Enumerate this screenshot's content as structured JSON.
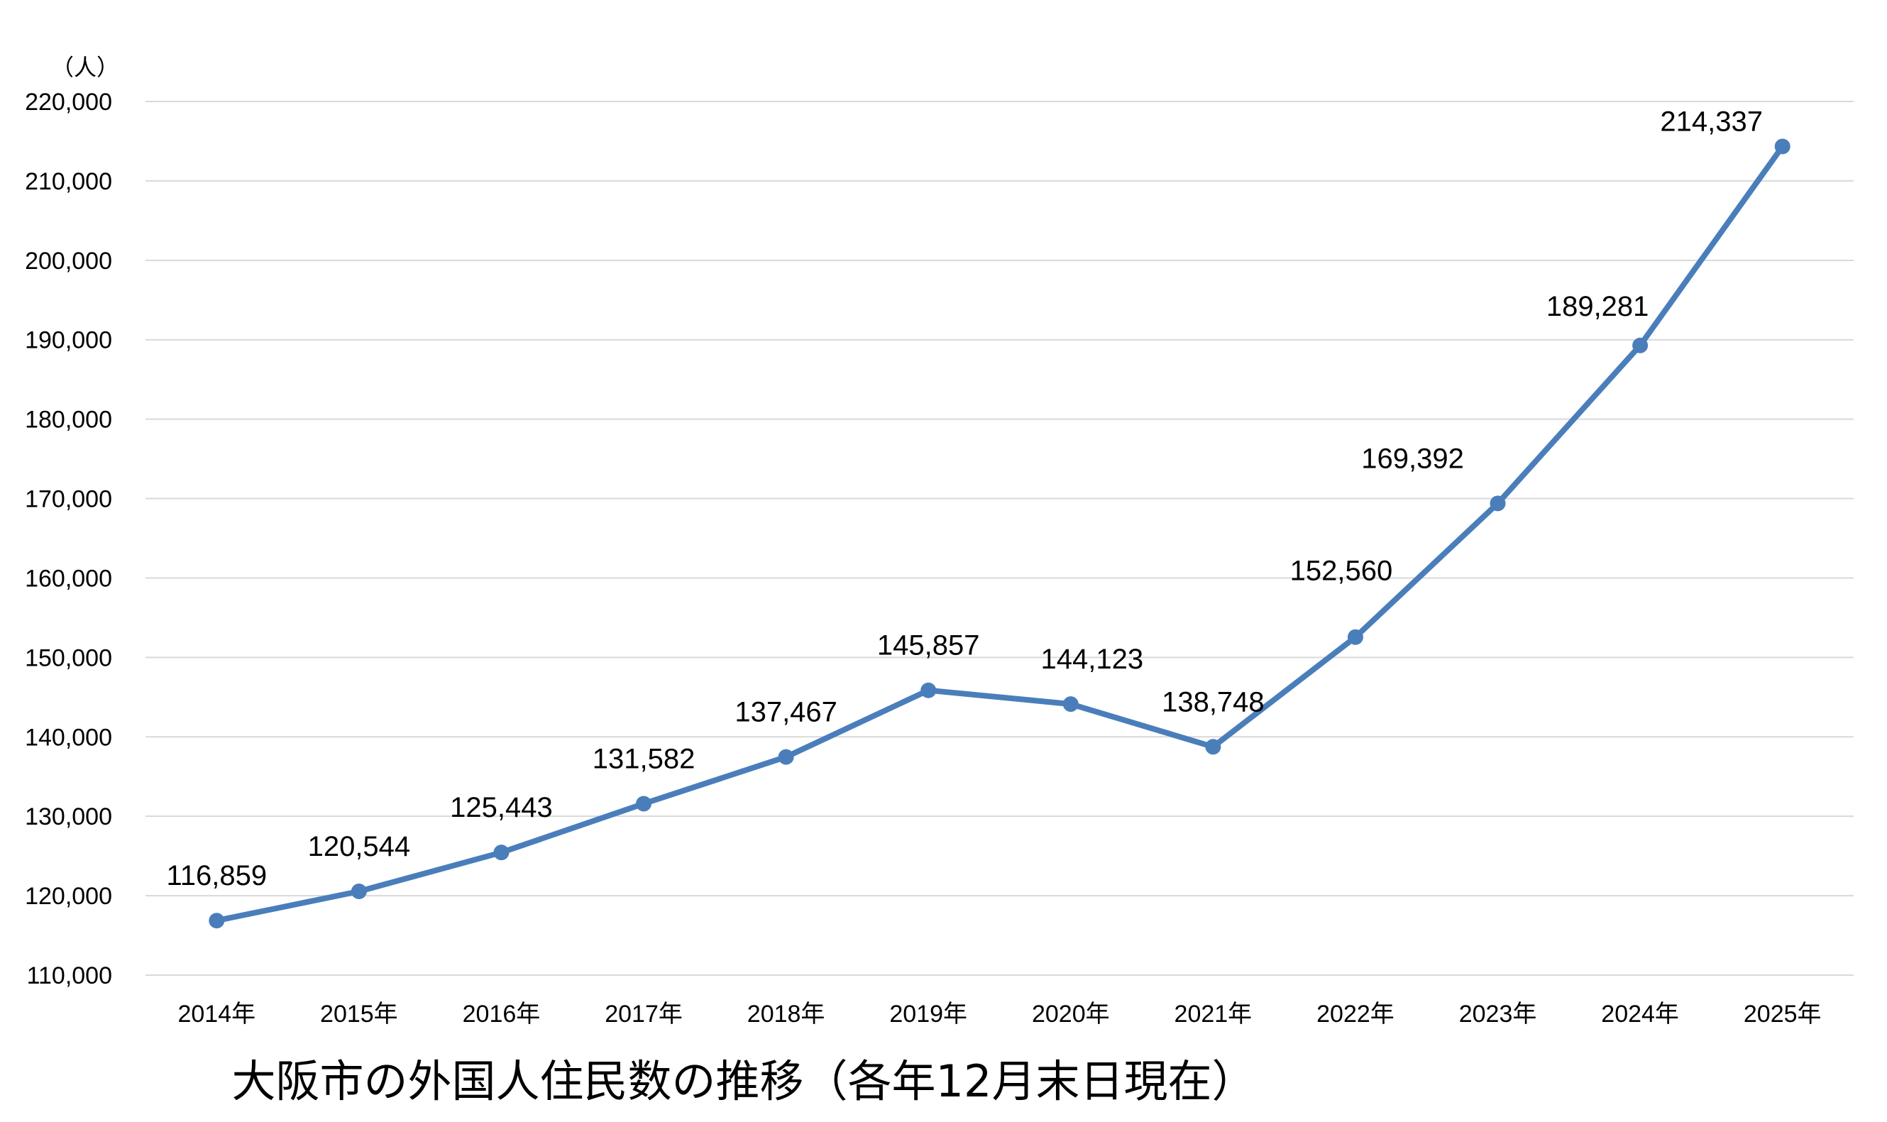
{
  "chart_data": {
    "type": "line",
    "title": "大阪市の外国人住民数の推移（各年12月末日現在）",
    "y_unit": "（人）",
    "categories": [
      "2014年",
      "2015年",
      "2016年",
      "2017年",
      "2018年",
      "2019年",
      "2020年",
      "2021年",
      "2022年",
      "2023年",
      "2024年",
      "2025年"
    ],
    "series": [
      {
        "values": [
          116859,
          120544,
          125443,
          131582,
          137467,
          145857,
          144123,
          138748,
          152560,
          169392,
          189281,
          214337
        ],
        "labels": [
          "116,859",
          "120,544",
          "125,443",
          "131,582",
          "137,467",
          "145,857",
          "144,123",
          "138,748",
          "152,560",
          "169,392",
          "189,281",
          "214,337"
        ]
      }
    ],
    "ylim": [
      110000,
      220000
    ],
    "yticks": [
      110000,
      120000,
      130000,
      140000,
      150000,
      160000,
      170000,
      180000,
      190000,
      200000,
      210000,
      220000
    ],
    "ytick_labels": [
      "110,000",
      "120,000",
      "130,000",
      "140,000",
      "150,000",
      "160,000",
      "170,000",
      "180,000",
      "190,000",
      "200,000",
      "210,000",
      "220,000"
    ],
    "grid": true,
    "legend": false,
    "colors": {
      "line": "#4a7ebb",
      "grid": "#d9d9d9",
      "highlight_label": "#ff0000",
      "label": "#000000"
    }
  }
}
